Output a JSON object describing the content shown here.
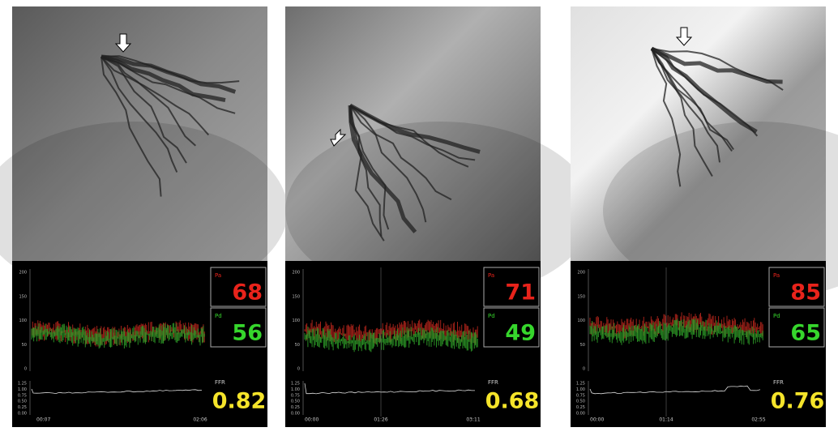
{
  "panels": [
    {
      "pa_label": "Pa",
      "pa": 68,
      "pd_label": "Pd",
      "pd": 56,
      "ffr_label": "FFR",
      "ffr": 0.82,
      "times": [
        "00:07",
        "02:06"
      ]
    },
    {
      "pa_label": "Pa",
      "pa": 71,
      "pd_label": "Pd",
      "pd": 49,
      "ffr_label": "FFR",
      "ffr": 0.68,
      "times": [
        "00:00",
        "01:26",
        "03:11"
      ]
    },
    {
      "pa_label": "Pa",
      "pa": 85,
      "pd_label": "Pd",
      "pd": 65,
      "ffr_label": "FFR",
      "ffr": 0.76,
      "times": [
        "00:00",
        "01:14",
        "02:55"
      ]
    }
  ],
  "pressure_ticks": [
    "200",
    "150",
    "100",
    "50",
    "0"
  ],
  "ffr_ticks": [
    "1.25",
    "1.00",
    "0.75",
    "0.50",
    "0.25",
    "0.00"
  ]
}
